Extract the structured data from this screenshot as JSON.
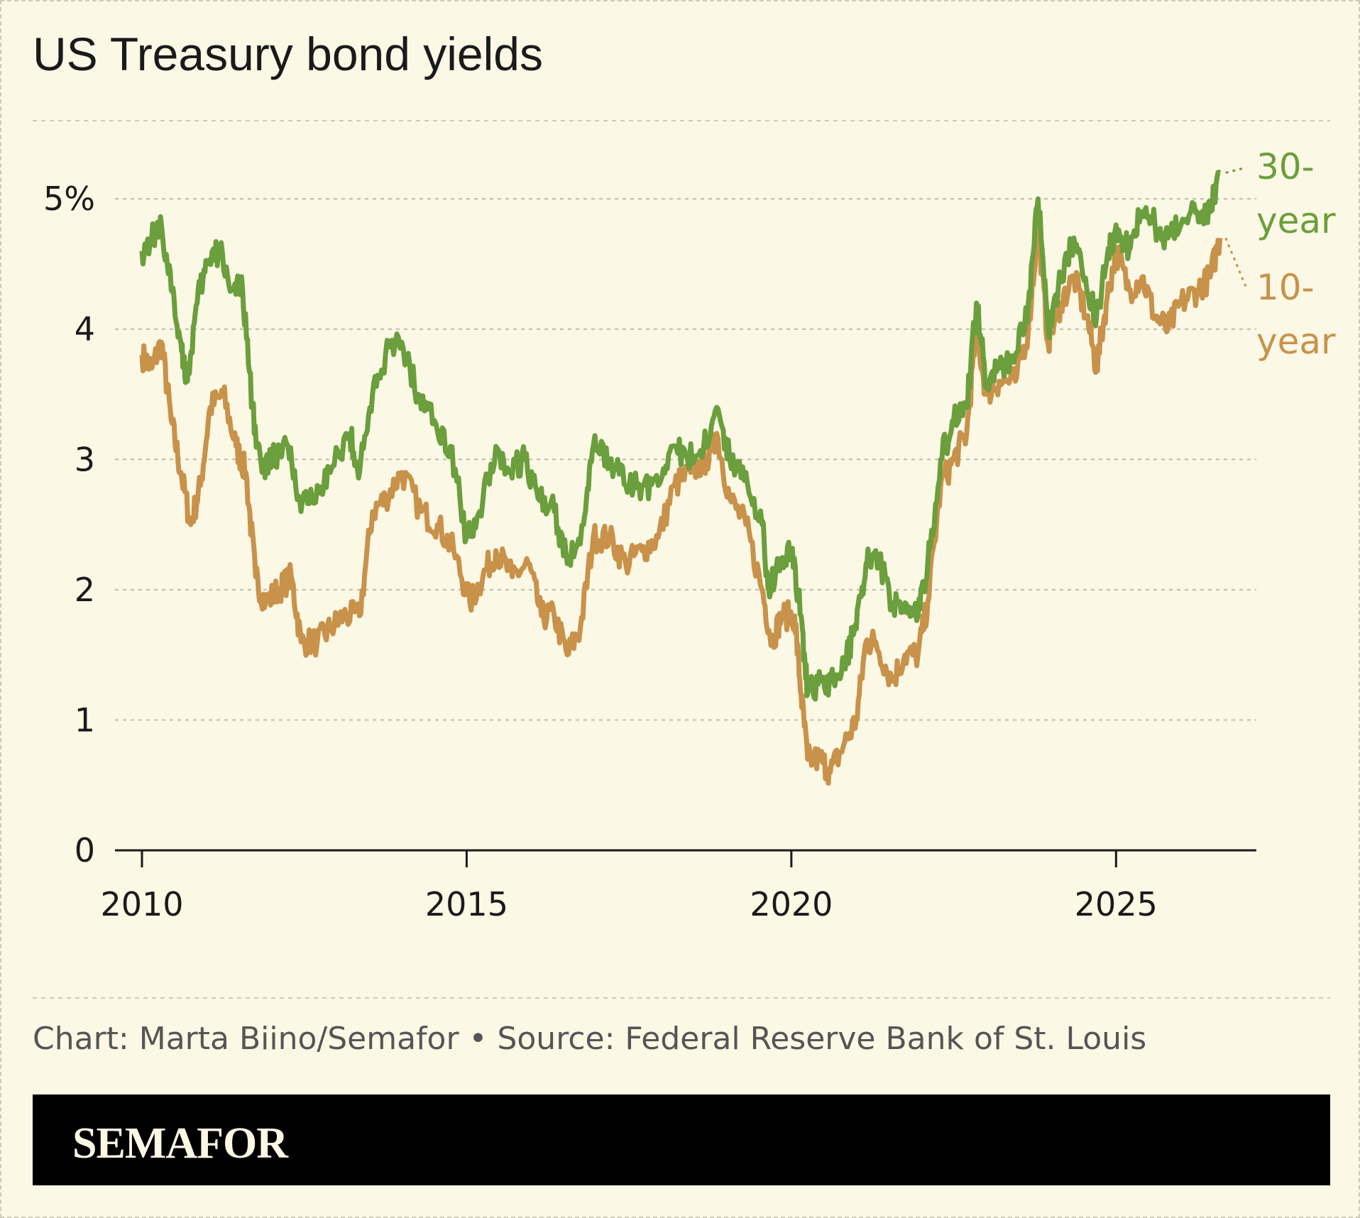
{
  "title": "US Treasury bond yields",
  "credit": "Chart: Marta Biino/Semafor • Source: Federal Reserve Bank of St. Louis",
  "brand": "SEMAFOR",
  "colors": {
    "background": "#fbf8e6",
    "thirty_year": "#6b9e3c",
    "ten_year": "#c8924a",
    "grid": "#bdbab0"
  },
  "chart_data": {
    "type": "line",
    "title": "US Treasury bond yields",
    "xlabel": "",
    "ylabel": "",
    "xlim": [
      2010,
      2026.8
    ],
    "ylim": [
      0,
      5.6
    ],
    "grid": true,
    "x_ticks": [
      2010,
      2015,
      2020,
      2025
    ],
    "x_tick_labels": [
      "2010",
      "2015",
      "2020",
      "2025"
    ],
    "y_ticks": [
      0,
      1,
      2,
      3,
      4,
      5
    ],
    "y_tick_labels": [
      "0",
      "1",
      "2",
      "3",
      "4",
      "5%"
    ],
    "series": [
      {
        "name": "30-year",
        "color": "#6b9e3c",
        "label_lines": [
          "30-",
          "year"
        ],
        "points": [
          [
            2010.0,
            4.6
          ],
          [
            2010.15,
            4.7
          ],
          [
            2010.3,
            4.8
          ],
          [
            2010.45,
            4.3
          ],
          [
            2010.6,
            3.9
          ],
          [
            2010.7,
            3.6
          ],
          [
            2010.85,
            4.2
          ],
          [
            2011.0,
            4.5
          ],
          [
            2011.2,
            4.6
          ],
          [
            2011.4,
            4.3
          ],
          [
            2011.55,
            4.3
          ],
          [
            2011.7,
            3.4
          ],
          [
            2011.85,
            2.9
          ],
          [
            2012.0,
            3.0
          ],
          [
            2012.25,
            3.1
          ],
          [
            2012.45,
            2.6
          ],
          [
            2012.7,
            2.8
          ],
          [
            2012.9,
            2.9
          ],
          [
            2013.2,
            3.2
          ],
          [
            2013.35,
            2.9
          ],
          [
            2013.55,
            3.5
          ],
          [
            2013.75,
            3.8
          ],
          [
            2014.0,
            3.9
          ],
          [
            2014.25,
            3.5
          ],
          [
            2014.5,
            3.3
          ],
          [
            2014.75,
            3.1
          ],
          [
            2015.0,
            2.4
          ],
          [
            2015.2,
            2.6
          ],
          [
            2015.45,
            3.1
          ],
          [
            2015.65,
            2.9
          ],
          [
            2015.9,
            3.0
          ],
          [
            2016.1,
            2.7
          ],
          [
            2016.35,
            2.6
          ],
          [
            2016.55,
            2.2
          ],
          [
            2016.8,
            2.5
          ],
          [
            2016.95,
            3.1
          ],
          [
            2017.2,
            3.0
          ],
          [
            2017.45,
            2.8
          ],
          [
            2017.7,
            2.8
          ],
          [
            2017.95,
            2.8
          ],
          [
            2018.15,
            3.1
          ],
          [
            2018.4,
            3.0
          ],
          [
            2018.65,
            3.1
          ],
          [
            2018.85,
            3.4
          ],
          [
            2019.05,
            3.0
          ],
          [
            2019.3,
            2.9
          ],
          [
            2019.55,
            2.5
          ],
          [
            2019.65,
            2.0
          ],
          [
            2019.8,
            2.2
          ],
          [
            2020.0,
            2.3
          ],
          [
            2020.15,
            1.8
          ],
          [
            2020.25,
            1.2
          ],
          [
            2020.45,
            1.3
          ],
          [
            2020.65,
            1.3
          ],
          [
            2020.85,
            1.5
          ],
          [
            2021.0,
            1.7
          ],
          [
            2021.15,
            2.2
          ],
          [
            2021.3,
            2.3
          ],
          [
            2021.55,
            1.9
          ],
          [
            2021.75,
            1.9
          ],
          [
            2021.95,
            1.8
          ],
          [
            2022.1,
            2.2
          ],
          [
            2022.3,
            3.0
          ],
          [
            2022.5,
            3.3
          ],
          [
            2022.7,
            3.4
          ],
          [
            2022.85,
            4.2
          ],
          [
            2023.0,
            3.6
          ],
          [
            2023.2,
            3.7
          ],
          [
            2023.45,
            3.8
          ],
          [
            2023.65,
            4.2
          ],
          [
            2023.8,
            5.0
          ],
          [
            2023.95,
            4.0
          ],
          [
            2024.15,
            4.4
          ],
          [
            2024.35,
            4.7
          ],
          [
            2024.55,
            4.3
          ],
          [
            2024.7,
            4.1
          ],
          [
            2024.85,
            4.5
          ],
          [
            2025.0,
            4.8
          ],
          [
            2025.2,
            4.6
          ],
          [
            2025.4,
            4.9
          ],
          [
            2025.6,
            4.8
          ],
          [
            2025.8,
            4.7
          ],
          [
            2026.0,
            4.8
          ],
          [
            2026.25,
            4.9
          ],
          [
            2026.45,
            4.9
          ],
          [
            2026.6,
            5.2
          ]
        ]
      },
      {
        "name": "10-year",
        "color": "#c8924a",
        "label_lines": [
          "10-",
          "year"
        ],
        "points": [
          [
            2010.0,
            3.8
          ],
          [
            2010.15,
            3.7
          ],
          [
            2010.3,
            3.9
          ],
          [
            2010.45,
            3.3
          ],
          [
            2010.6,
            2.9
          ],
          [
            2010.75,
            2.5
          ],
          [
            2010.9,
            2.8
          ],
          [
            2011.05,
            3.4
          ],
          [
            2011.25,
            3.5
          ],
          [
            2011.45,
            3.1
          ],
          [
            2011.6,
            2.9
          ],
          [
            2011.75,
            2.1
          ],
          [
            2011.9,
            1.9
          ],
          [
            2012.1,
            2.0
          ],
          [
            2012.3,
            2.1
          ],
          [
            2012.45,
            1.6
          ],
          [
            2012.7,
            1.6
          ],
          [
            2012.9,
            1.7
          ],
          [
            2013.1,
            1.8
          ],
          [
            2013.35,
            1.8
          ],
          [
            2013.55,
            2.6
          ],
          [
            2013.75,
            2.7
          ],
          [
            2014.0,
            2.9
          ],
          [
            2014.3,
            2.6
          ],
          [
            2014.55,
            2.5
          ],
          [
            2014.8,
            2.3
          ],
          [
            2015.05,
            1.9
          ],
          [
            2015.25,
            2.1
          ],
          [
            2015.45,
            2.3
          ],
          [
            2015.7,
            2.1
          ],
          [
            2015.95,
            2.2
          ],
          [
            2016.15,
            1.8
          ],
          [
            2016.35,
            1.8
          ],
          [
            2016.55,
            1.5
          ],
          [
            2016.75,
            1.7
          ],
          [
            2016.95,
            2.4
          ],
          [
            2017.2,
            2.4
          ],
          [
            2017.45,
            2.2
          ],
          [
            2017.7,
            2.3
          ],
          [
            2017.95,
            2.4
          ],
          [
            2018.2,
            2.8
          ],
          [
            2018.45,
            2.9
          ],
          [
            2018.7,
            3.0
          ],
          [
            2018.85,
            3.2
          ],
          [
            2019.05,
            2.7
          ],
          [
            2019.3,
            2.5
          ],
          [
            2019.55,
            2.0
          ],
          [
            2019.7,
            1.6
          ],
          [
            2019.85,
            1.8
          ],
          [
            2020.05,
            1.8
          ],
          [
            2020.15,
            1.2
          ],
          [
            2020.25,
            0.7
          ],
          [
            2020.45,
            0.7
          ],
          [
            2020.6,
            0.6
          ],
          [
            2020.8,
            0.8
          ],
          [
            2021.0,
            1.0
          ],
          [
            2021.15,
            1.6
          ],
          [
            2021.3,
            1.6
          ],
          [
            2021.55,
            1.3
          ],
          [
            2021.75,
            1.5
          ],
          [
            2021.95,
            1.5
          ],
          [
            2022.1,
            1.9
          ],
          [
            2022.3,
            2.8
          ],
          [
            2022.5,
            3.0
          ],
          [
            2022.7,
            3.2
          ],
          [
            2022.85,
            4.0
          ],
          [
            2023.0,
            3.5
          ],
          [
            2023.2,
            3.6
          ],
          [
            2023.45,
            3.6
          ],
          [
            2023.65,
            4.0
          ],
          [
            2023.8,
            4.8
          ],
          [
            2023.95,
            3.9
          ],
          [
            2024.15,
            4.2
          ],
          [
            2024.35,
            4.4
          ],
          [
            2024.55,
            4.1
          ],
          [
            2024.7,
            3.7
          ],
          [
            2024.85,
            4.2
          ],
          [
            2025.0,
            4.6
          ],
          [
            2025.2,
            4.3
          ],
          [
            2025.4,
            4.4
          ],
          [
            2025.6,
            4.1
          ],
          [
            2025.8,
            4.0
          ],
          [
            2026.0,
            4.2
          ],
          [
            2026.25,
            4.3
          ],
          [
            2026.45,
            4.4
          ],
          [
            2026.6,
            4.7
          ]
        ]
      }
    ]
  }
}
